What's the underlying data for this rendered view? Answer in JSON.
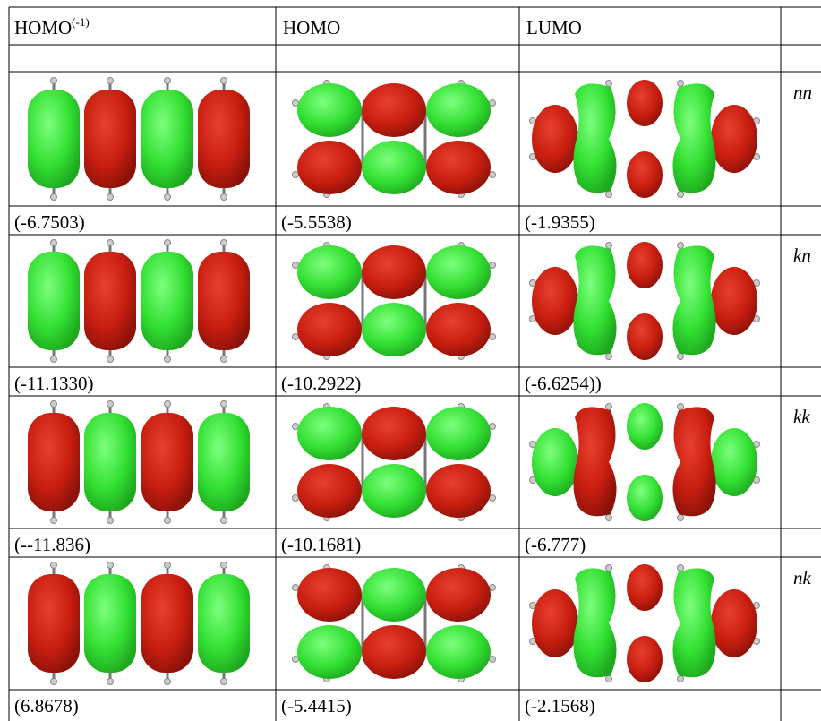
{
  "header": [
    {
      "text": "HOMO",
      "sup": "(-1)"
    },
    {
      "text": "HOMO"
    },
    {
      "text": "LUMO"
    }
  ],
  "rows": [
    {
      "label": "nn",
      "energies": [
        "(-6.7503)",
        "(-5.5538)",
        "(-1.9355)"
      ]
    },
    {
      "label": "kn",
      "energies": [
        "(-11.1330)",
        "(-10.2922)",
        "(-6.6254))"
      ]
    },
    {
      "label": "kk",
      "energies": [
        "(--11.836)",
        "(-10.1681)",
        "(-6.777)"
      ]
    },
    {
      "label": "nk",
      "energies": [
        "(6.8678)",
        "(-5.4415)",
        "(-2.1568)"
      ]
    }
  ]
}
